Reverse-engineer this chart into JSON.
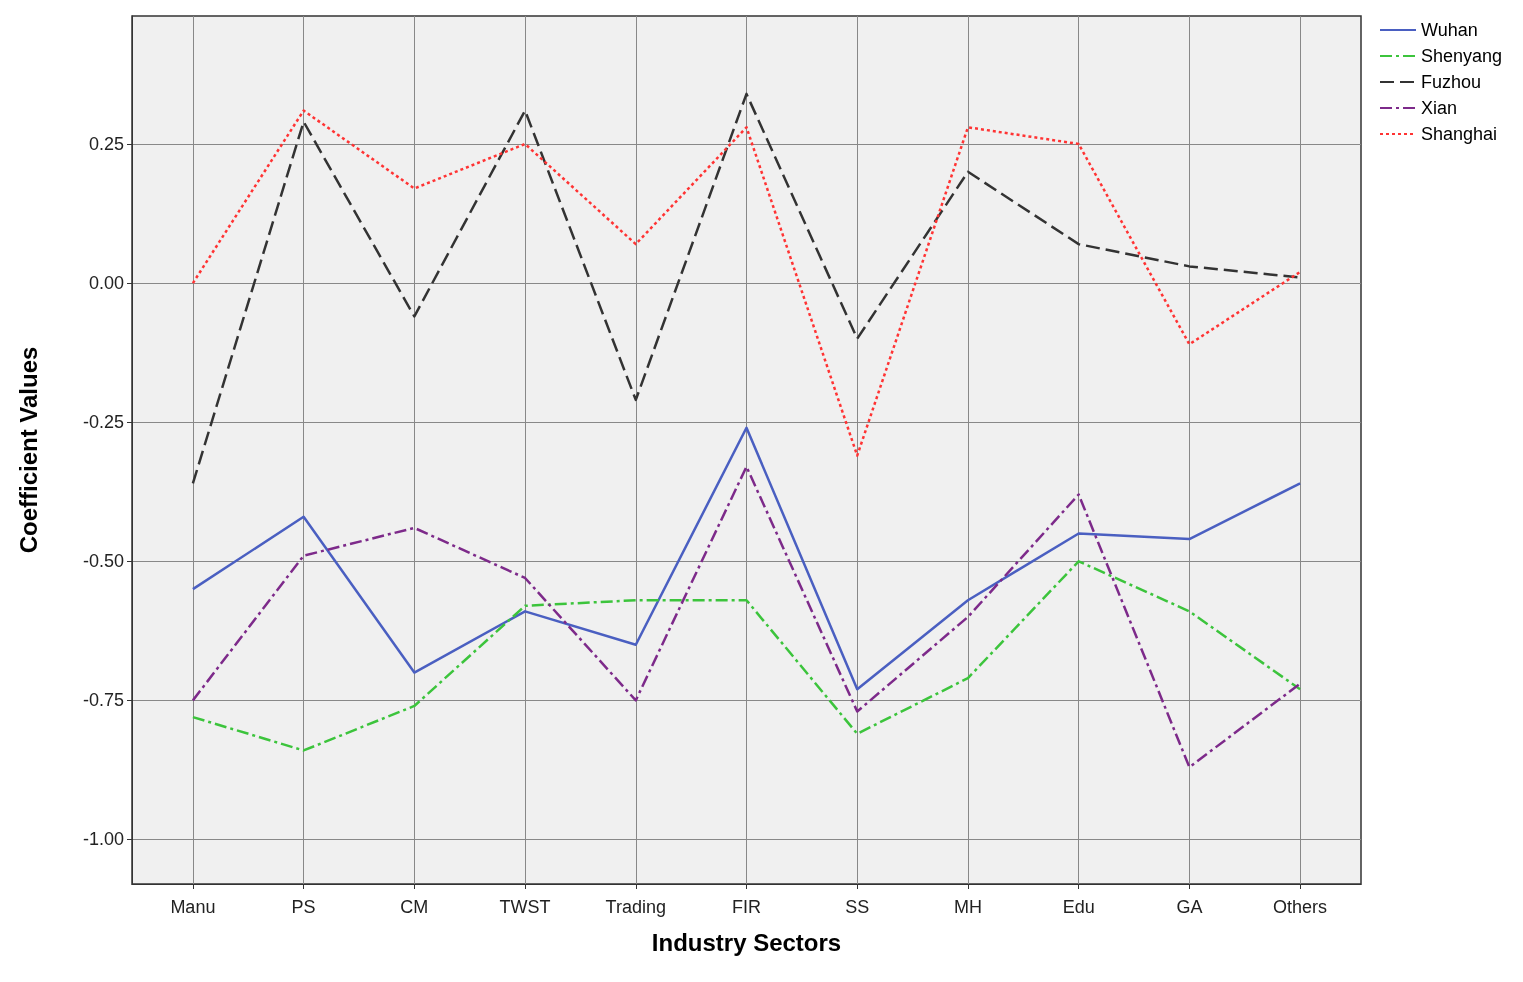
{
  "chart_data": {
    "type": "line",
    "xlabel": "Industry Sectors",
    "ylabel": "Coefficient Values",
    "categories": [
      "Manu",
      "PS",
      "CM",
      "TWST",
      "Trading",
      "FIR",
      "SS",
      "MH",
      "Edu",
      "GA",
      "Others"
    ],
    "series": [
      {
        "name": "Wuhan",
        "color": "#4a5fc1",
        "line_style": "solid",
        "values": [
          -0.55,
          -0.42,
          -0.7,
          -0.59,
          -0.65,
          -0.26,
          -0.73,
          -0.57,
          -0.45,
          -0.46,
          -0.36
        ]
      },
      {
        "name": "Shenyang",
        "color": "#3cc43c",
        "line_style": "dashdot",
        "values": [
          -0.78,
          -0.84,
          -0.76,
          -0.58,
          -0.57,
          -0.57,
          -0.81,
          -0.71,
          -0.5,
          -0.59,
          -0.73
        ]
      },
      {
        "name": "Fuzhou",
        "color": "#333333",
        "line_style": "dashed",
        "values": [
          -0.36,
          0.29,
          -0.06,
          0.31,
          -0.21,
          0.34,
          -0.1,
          0.2,
          0.07,
          0.03,
          0.01
        ]
      },
      {
        "name": "Xian",
        "color": "#7d2a8a",
        "line_style": "dashdot",
        "values": [
          -0.75,
          -0.49,
          -0.44,
          -0.53,
          -0.75,
          -0.33,
          -0.77,
          -0.6,
          -0.38,
          -0.87,
          -0.72
        ]
      },
      {
        "name": "Shanghai",
        "color": "#ff3333",
        "line_style": "dotted",
        "values": [
          0.0,
          0.31,
          0.17,
          0.25,
          0.07,
          0.28,
          -0.31,
          0.28,
          0.25,
          -0.11,
          0.02
        ]
      }
    ],
    "ylim": [
      -1.08,
      0.48
    ],
    "yticks": [
      {
        "value": -1,
        "label": "-1.00"
      },
      {
        "value": -0.75,
        "label": "-0.75"
      },
      {
        "value": -0.5,
        "label": "-0.50"
      },
      {
        "value": -0.25,
        "label": "-0.25"
      },
      {
        "value": 0,
        "label": "0.00"
      },
      {
        "value": 0.25,
        "label": "0.25"
      }
    ],
    "grid": true,
    "legend": "top right",
    "marker": "none"
  }
}
